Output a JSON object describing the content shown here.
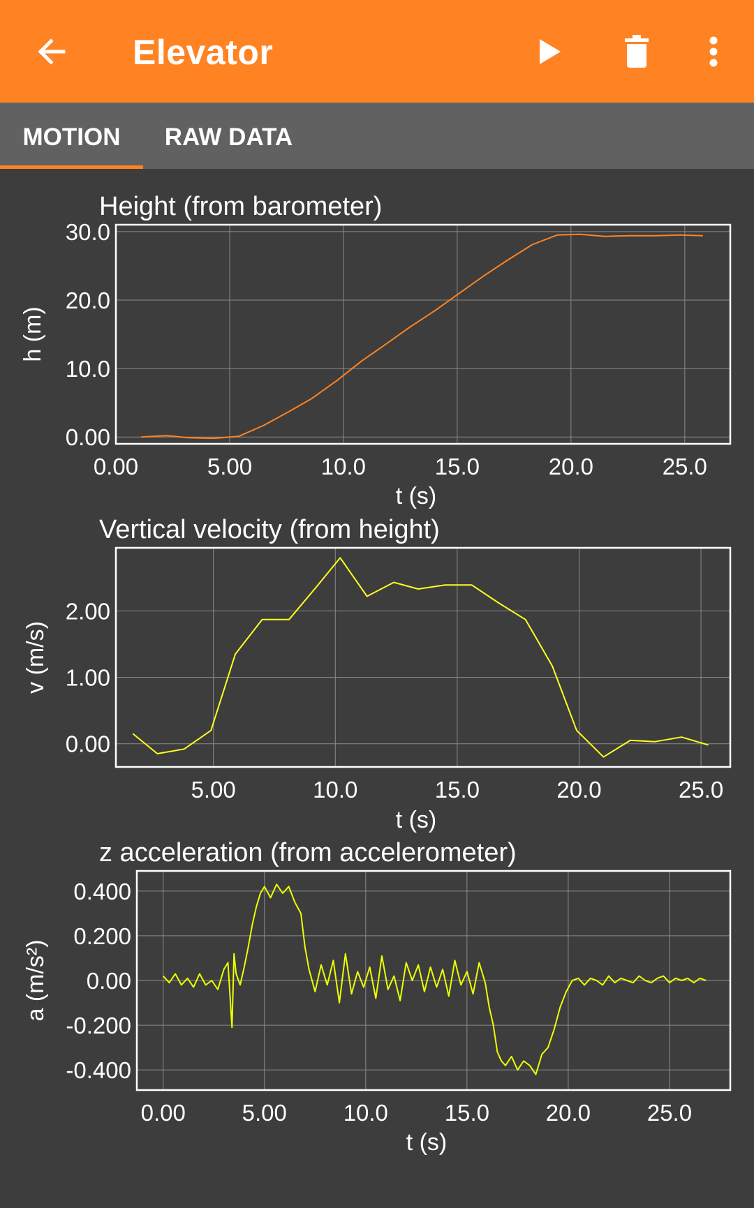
{
  "app": {
    "title": "Elevator",
    "back_icon": "arrow-left-icon",
    "play_icon": "play-icon",
    "delete_icon": "trash-icon",
    "menu_icon": "more-vertical-icon",
    "accent": "#ff8323"
  },
  "tabs": [
    {
      "label": "MOTION",
      "selected": true
    },
    {
      "label": "RAW DATA",
      "selected": false
    }
  ],
  "chart_data": [
    {
      "type": "line",
      "title": "Height (from barometer)",
      "xlabel": "t (s)",
      "ylabel": "h (m)",
      "xlim": [
        0,
        27
      ],
      "ylim": [
        -1,
        31
      ],
      "xticks": [
        "0.00",
        "5.00",
        "10.0",
        "15.0",
        "20.0",
        "25.0"
      ],
      "xtick_values": [
        0,
        5,
        10,
        15,
        20,
        25
      ],
      "yticks": [
        "0.00",
        "10.0",
        "20.0",
        "30.0"
      ],
      "ytick_values": [
        0,
        10,
        20,
        30
      ],
      "grid": true,
      "color": "#ff8323",
      "series": [
        {
          "x": [
            1.1,
            2.2,
            3.2,
            4.3,
            5.4,
            6.5,
            7.6,
            8.6,
            9.7,
            10.8,
            11.8,
            12.9,
            14.0,
            15.1,
            16.2,
            17.2,
            18.3,
            19.4,
            20.4,
            21.5,
            22.6,
            23.7,
            24.8,
            25.8
          ],
          "y": [
            0.0,
            0.2,
            -0.1,
            -0.2,
            0.1,
            1.7,
            3.7,
            5.6,
            8.2,
            11.1,
            13.4,
            16.0,
            18.4,
            21.0,
            23.6,
            25.8,
            28.1,
            29.5,
            29.6,
            29.3,
            29.4,
            29.4,
            29.5,
            29.4
          ]
        }
      ]
    },
    {
      "type": "line",
      "title": "Vertical velocity (from height)",
      "xlabel": "t (s)",
      "ylabel": "v (m/s)",
      "xlim": [
        1.0,
        26.2
      ],
      "ylim": [
        -0.35,
        2.95
      ],
      "xticks": [
        "5.00",
        "10.0",
        "15.0",
        "20.0",
        "25.0"
      ],
      "xtick_values": [
        5,
        10,
        15,
        20,
        25
      ],
      "yticks": [
        "0.00",
        "1.00",
        "2.00"
      ],
      "ytick_values": [
        0,
        1,
        2
      ],
      "grid": true,
      "color": "#ffff20",
      "series": [
        {
          "x": [
            1.7,
            2.7,
            3.8,
            4.9,
            5.9,
            7.0,
            8.1,
            9.2,
            10.2,
            11.3,
            12.4,
            13.4,
            14.5,
            15.6,
            16.7,
            17.8,
            18.9,
            19.9,
            21.0,
            22.1,
            23.1,
            24.2,
            25.3
          ],
          "y": [
            0.15,
            -0.15,
            -0.08,
            0.2,
            1.35,
            1.87,
            1.87,
            2.35,
            2.8,
            2.22,
            2.43,
            2.33,
            2.39,
            2.39,
            2.12,
            1.87,
            1.17,
            0.2,
            -0.2,
            0.05,
            0.03,
            0.1,
            -0.02
          ]
        }
      ]
    },
    {
      "type": "line",
      "title": "z acceleration (from accelerometer)",
      "xlabel": "t (s)",
      "ylabel": "a (m/s²)",
      "xlim": [
        -1.3,
        28.0
      ],
      "ylim": [
        -0.49,
        0.49
      ],
      "xticks": [
        "0.00",
        "5.00",
        "10.0",
        "15.0",
        "20.0",
        "25.0"
      ],
      "xtick_values": [
        0,
        5,
        10,
        15,
        20,
        25
      ],
      "yticks": [
        "0.400",
        "0.200",
        "0.00",
        "-0.200",
        "-0.400"
      ],
      "ytick_values": [
        0.4,
        0.2,
        0,
        -0.2,
        -0.4
      ],
      "grid": true,
      "color": "#ecff00",
      "series": [
        {
          "x": [
            0.0,
            0.3,
            0.6,
            0.9,
            1.2,
            1.5,
            1.8,
            2.1,
            2.4,
            2.7,
            3.0,
            3.2,
            3.4,
            3.5,
            3.6,
            3.8,
            4.0,
            4.2,
            4.4,
            4.6,
            4.8,
            5.0,
            5.3,
            5.6,
            5.9,
            6.2,
            6.5,
            6.8,
            7.0,
            7.2,
            7.5,
            7.8,
            8.1,
            8.4,
            8.7,
            9.0,
            9.3,
            9.6,
            9.9,
            10.2,
            10.5,
            10.8,
            11.1,
            11.4,
            11.7,
            12.0,
            12.3,
            12.6,
            12.9,
            13.2,
            13.5,
            13.8,
            14.1,
            14.4,
            14.7,
            15.0,
            15.3,
            15.6,
            15.9,
            16.1,
            16.3,
            16.5,
            16.7,
            16.9,
            17.2,
            17.5,
            17.8,
            18.1,
            18.4,
            18.7,
            19.0,
            19.3,
            19.6,
            19.9,
            20.2,
            20.5,
            20.8,
            21.1,
            21.4,
            21.7,
            22.0,
            22.3,
            22.6,
            22.9,
            23.2,
            23.5,
            23.8,
            24.1,
            24.4,
            24.7,
            25.0,
            25.3,
            25.6,
            25.9,
            26.2,
            26.5,
            26.8
          ],
          "y": [
            0.02,
            -0.01,
            0.03,
            -0.02,
            0.01,
            -0.03,
            0.03,
            -0.02,
            0.0,
            -0.04,
            0.05,
            0.08,
            -0.21,
            0.12,
            0.03,
            -0.02,
            0.06,
            0.15,
            0.25,
            0.33,
            0.39,
            0.42,
            0.37,
            0.43,
            0.39,
            0.42,
            0.35,
            0.3,
            0.15,
            0.05,
            -0.05,
            0.07,
            -0.02,
            0.09,
            -0.1,
            0.12,
            -0.06,
            0.04,
            -0.03,
            0.06,
            -0.08,
            0.11,
            -0.04,
            0.02,
            -0.09,
            0.08,
            0.0,
            0.07,
            -0.05,
            0.06,
            -0.03,
            0.05,
            -0.07,
            0.09,
            -0.02,
            0.04,
            -0.06,
            0.08,
            -0.01,
            -0.12,
            -0.2,
            -0.32,
            -0.36,
            -0.38,
            -0.34,
            -0.4,
            -0.36,
            -0.38,
            -0.42,
            -0.33,
            -0.3,
            -0.22,
            -0.12,
            -0.05,
            0.0,
            0.01,
            -0.02,
            0.01,
            0.0,
            -0.02,
            0.02,
            -0.01,
            0.01,
            0.0,
            -0.01,
            0.02,
            0.0,
            -0.01,
            0.01,
            0.02,
            -0.01,
            0.01,
            0.0,
            0.01,
            -0.01,
            0.01,
            0.0
          ]
        }
      ]
    }
  ]
}
